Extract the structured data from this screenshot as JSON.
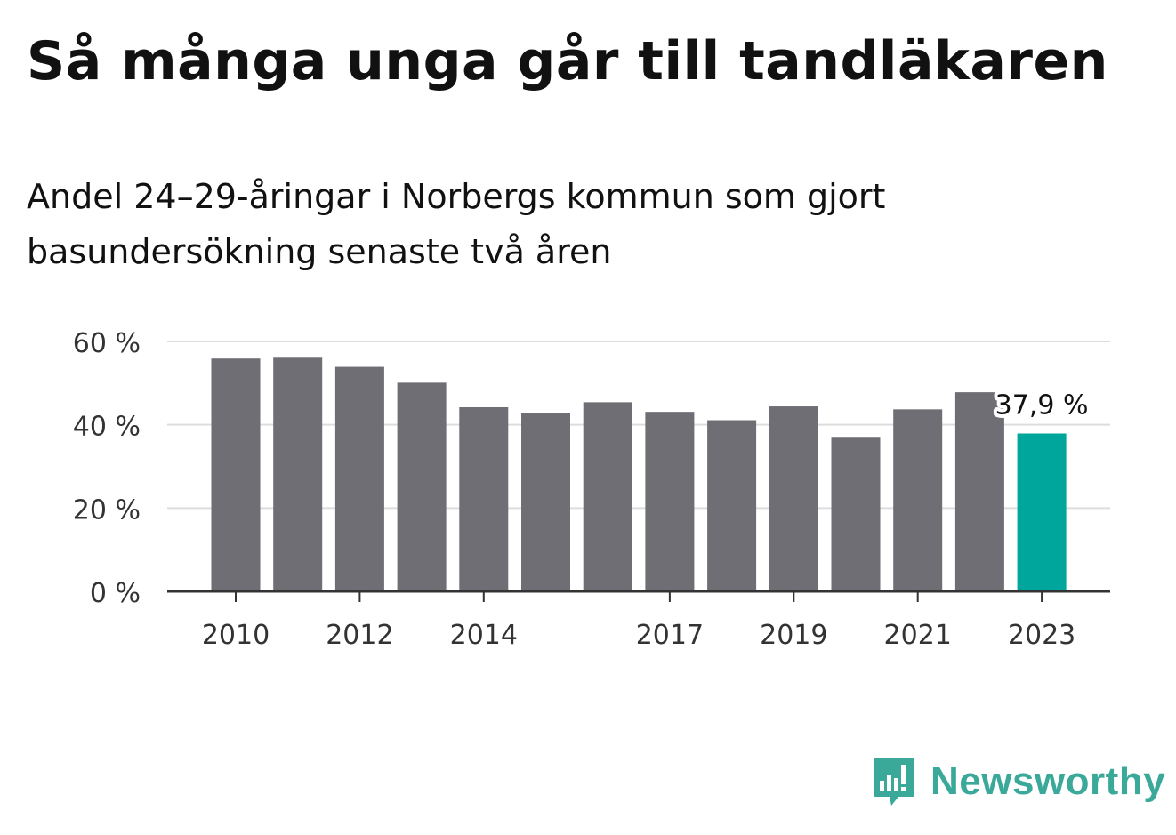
{
  "header": {
    "title": "Så många unga går till tandläkaren",
    "subtitle": "Andel 24–29-åringar i Norbergs kommun som gjort basundersökning senaste två åren"
  },
  "brand": {
    "name": "Newsworthy",
    "color": "#3aa99a"
  },
  "colors": {
    "bar": "#6e6e74",
    "highlight": "#00a69b",
    "grid": "#dddddd",
    "axis": "#333333"
  },
  "chart_data": {
    "type": "bar",
    "categories": [
      "2010",
      "2011",
      "2012",
      "2013",
      "2014",
      "2015",
      "2016",
      "2017",
      "2018",
      "2019",
      "2020",
      "2021",
      "2022",
      "2023"
    ],
    "values": [
      55.9,
      56.1,
      53.9,
      50.1,
      44.2,
      42.7,
      45.4,
      43.1,
      41.1,
      44.4,
      37.1,
      43.7,
      47.8,
      37.9
    ],
    "x_tick_labels": [
      "2010",
      "",
      "2012",
      "",
      "2014",
      "",
      "",
      "2017",
      "",
      "2019",
      "",
      "2021",
      "",
      "2023"
    ],
    "y_ticks": [
      0,
      20,
      40,
      60
    ],
    "y_tick_labels": [
      "0 %",
      "20 %",
      "40 %",
      "60 %"
    ],
    "ylim": [
      0,
      60
    ],
    "highlight_index": 13,
    "annotation": "37,9 %",
    "grid": true,
    "xlabel": "",
    "ylabel": ""
  }
}
